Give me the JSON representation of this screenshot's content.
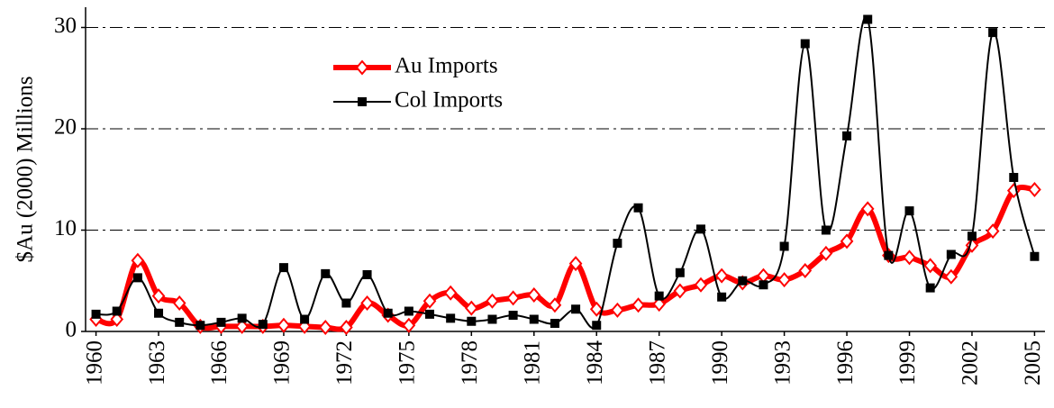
{
  "chart_data": {
    "type": "line",
    "y_label": "$Au (2000) Millions",
    "x": [
      1960,
      1961,
      1962,
      1963,
      1964,
      1965,
      1966,
      1967,
      1968,
      1969,
      1970,
      1971,
      1972,
      1973,
      1974,
      1975,
      1976,
      1977,
      1978,
      1979,
      1980,
      1981,
      1982,
      1983,
      1984,
      1985,
      1986,
      1987,
      1988,
      1989,
      1990,
      1991,
      1992,
      1993,
      1994,
      1995,
      1996,
      1997,
      1998,
      1999,
      2000,
      2001,
      2002,
      2003,
      2004,
      2005
    ],
    "series": [
      {
        "name": "Au Imports",
        "color": "#ff0000",
        "values": [
          1.2,
          1.2,
          7.0,
          3.5,
          2.8,
          0.5,
          0.5,
          0.5,
          0.5,
          0.6,
          0.5,
          0.4,
          0.4,
          2.8,
          1.6,
          0.6,
          3.0,
          3.8,
          2.3,
          3.0,
          3.3,
          3.6,
          2.6,
          6.7,
          2.2,
          2.1,
          2.6,
          2.7,
          4.0,
          4.6,
          5.5,
          4.8,
          5.5,
          5.1,
          6.0,
          7.7,
          8.9,
          12.1,
          7.5,
          7.3,
          6.5,
          5.4,
          8.5,
          9.9,
          13.9,
          14.0
        ]
      },
      {
        "name": "Col Imports",
        "color": "#000000",
        "values": [
          1.7,
          2.0,
          5.3,
          1.8,
          0.9,
          0.6,
          0.9,
          1.3,
          0.7,
          6.3,
          1.2,
          5.7,
          2.8,
          5.6,
          1.8,
          2.0,
          1.7,
          1.3,
          1.0,
          1.2,
          1.6,
          1.2,
          0.8,
          2.2,
          0.6,
          8.7,
          12.2,
          3.5,
          5.8,
          10.1,
          3.4,
          5.0,
          4.6,
          8.4,
          28.4,
          10.0,
          19.3,
          30.8,
          7.5,
          11.9,
          4.3,
          7.6,
          9.4,
          29.5,
          15.2,
          7.4
        ]
      }
    ],
    "xlim": [
      1959.5,
      2005.5
    ],
    "xticks": [
      1960,
      1963,
      1966,
      1969,
      1972,
      1975,
      1978,
      1981,
      1984,
      1987,
      1990,
      1993,
      1996,
      1999,
      2002,
      2005
    ],
    "ylim": [
      0,
      32
    ],
    "yticks": [
      0,
      10,
      20,
      30
    ],
    "grid": true,
    "legend": "upper center"
  }
}
